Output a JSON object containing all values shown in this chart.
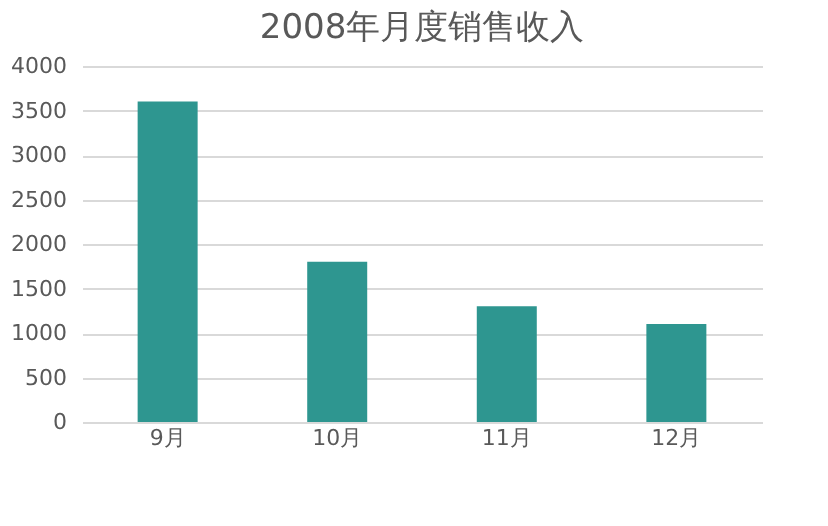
{
  "chart_data": {
    "type": "bar",
    "title": "2008年月度销售收入",
    "categories": [
      "9月",
      "10月",
      "11月",
      "12月"
    ],
    "values": [
      3600,
      1800,
      1300,
      1100
    ],
    "color": "#2e9690",
    "ylim": [
      0,
      4000
    ],
    "yticks": [
      0,
      500,
      1000,
      1500,
      2000,
      2500,
      3000,
      3500,
      4000
    ],
    "grid": "y"
  }
}
